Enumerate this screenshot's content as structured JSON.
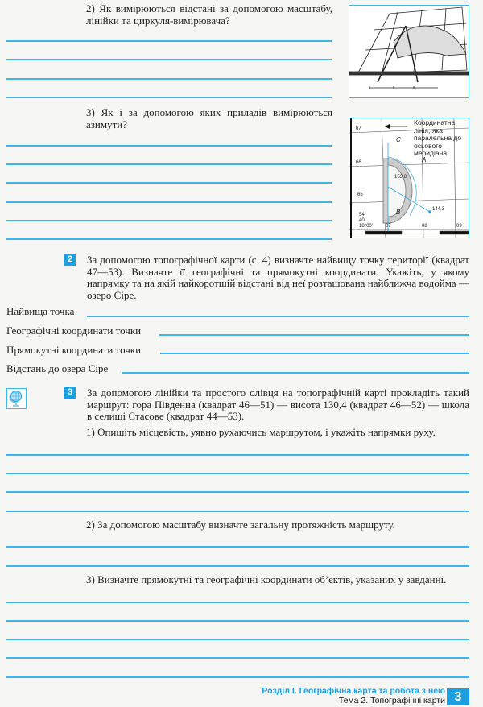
{
  "task1": {
    "q2": "2) Як вимірюються відстані за допомогою масштабу, лінійки та циркуля-вимірювача?",
    "q3": "3) Як і за допомогою яких приладів вимірюються азимути?",
    "figure2_caption": "Координатна лінія, яка паралельна до осьового меридіана",
    "figure2_labels": {
      "c": "C",
      "a": "A",
      "b": "B",
      "v1": "153,8",
      "v2": "144,3",
      "y67": "67",
      "y66": "66",
      "y65": "65",
      "x07": "07",
      "x08": "08",
      "x09": "09",
      "lat": "54°",
      "lat2": "40'",
      "lon": "18°00'"
    }
  },
  "task2": {
    "number": "2",
    "text": "За допомогою топографічної карти (с. 4) визначте найвищу точку території (квадрат 47—53). Визначте її географічні та прямокутні координати. Укажіть, у якому напрямку та на якій найкоротшій відстані від неї розташована найближча водойма — озеро Сіре.",
    "fields": [
      "Найвища точка",
      "Географічні координати точки",
      "Прямокутні координати точки",
      "Відстань до озера Сіре"
    ]
  },
  "task3": {
    "number": "3",
    "icon": "globe-icon",
    "text": "За допомогою лінійки та простого олівця на топографічній карті прокладіть такий маршрут: гора Південна (квадрат 46—51) — висота 130,4 (квадрат 46—52) — школа в селищі Стасове (квадрат 44—53).",
    "q1": "1) Опишіть місцевість, уявно рухаючись маршрутом, і укажіть напрямки руху.",
    "q2": "2) За допомогою масштабу визначте загальну протяжність маршруту.",
    "q3": "3) Визначте прямокутні та географічні координати об’єктів, указаних у завданні."
  },
  "footer": {
    "section": "Розділ І. Географічна карта та робота з нею",
    "topic": "Тема 2. Топографічні карти",
    "page": "3"
  },
  "colors": {
    "accent": "#1ea0e0",
    "line": "#3fb6ea"
  }
}
